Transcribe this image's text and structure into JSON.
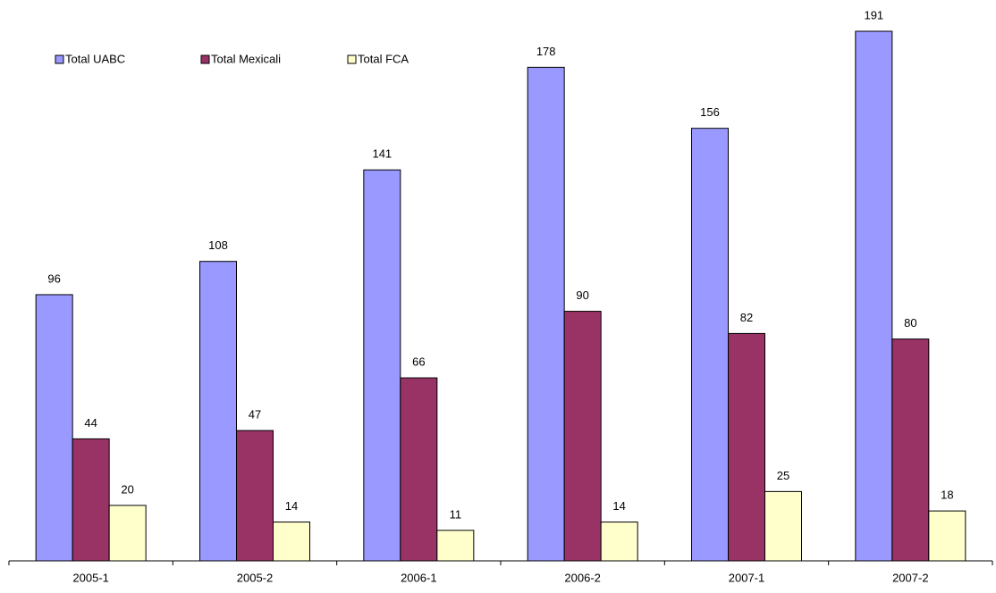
{
  "chart_data": {
    "type": "bar",
    "categories": [
      "2005-1",
      "2005-2",
      "2006-1",
      "2006-2",
      "2007-1",
      "2007-2"
    ],
    "series": [
      {
        "name": "Total UABC",
        "color": "#9999ff",
        "values": [
          96,
          108,
          141,
          178,
          156,
          191
        ]
      },
      {
        "name": "Total Mexicali",
        "color": "#993366",
        "values": [
          44,
          47,
          66,
          90,
          82,
          80
        ]
      },
      {
        "name": "Total FCA",
        "color": "#ffffcc",
        "values": [
          20,
          14,
          11,
          14,
          25,
          18
        ]
      }
    ],
    "legend": "top-left"
  }
}
